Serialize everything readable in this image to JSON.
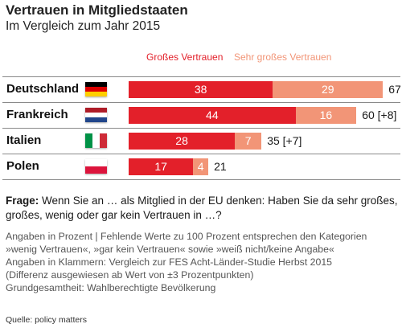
{
  "header": {
    "title": "Vertrauen in Mitgliedstaaten",
    "subtitle": "Im Vergleich zum Jahr 2015"
  },
  "colors": {
    "series_1": "#e3202a",
    "series_2": "#f29577",
    "separator": "#8a8a8a"
  },
  "chart_data": {
    "type": "bar",
    "stacked": true,
    "orientation": "horizontal",
    "categories": [
      "Deutschland",
      "Frankreich",
      "Italien",
      "Polen"
    ],
    "series": [
      {
        "name": "Großes Vertrauen",
        "values": [
          38,
          44,
          28,
          17
        ],
        "color": "#e3202a"
      },
      {
        "name": "Sehr großes Vertrauen",
        "values": [
          29,
          16,
          7,
          4
        ],
        "color": "#f29577"
      }
    ],
    "totals": [
      "67",
      "60 [+8]",
      "35 [+7]",
      "21"
    ],
    "flags": [
      "germany-flag",
      "netherlands-flag",
      "italy-flag",
      "poland-flag"
    ],
    "legend_position": "top",
    "xlim": [
      0,
      70
    ],
    "grid": false
  },
  "notes": {
    "question_label": "Frage:",
    "question_text": " Wenn Sie an … als Mitglied in der EU denken:  Haben Sie da sehr großes, großes, wenig oder gar kein Vertrauen in …?",
    "lines": [
      "Angaben in Prozent | Fehlende Werte zu 100 Prozent entsprechen den Kategorien",
      "»wenig Vertrauen«, »gar kein Vertrauen« sowie »weiß nicht/keine Angabe«",
      "Angaben in Klammern: Vergleich zur FES Acht-Länder-Studie Herbst 2015",
      "(Differenz ausgewiesen ab Wert von ±3 Prozentpunkten)",
      "Grundgesamtheit: Wahlberechtigte Bevölkerung"
    ],
    "source": "Quelle: policy matters"
  }
}
